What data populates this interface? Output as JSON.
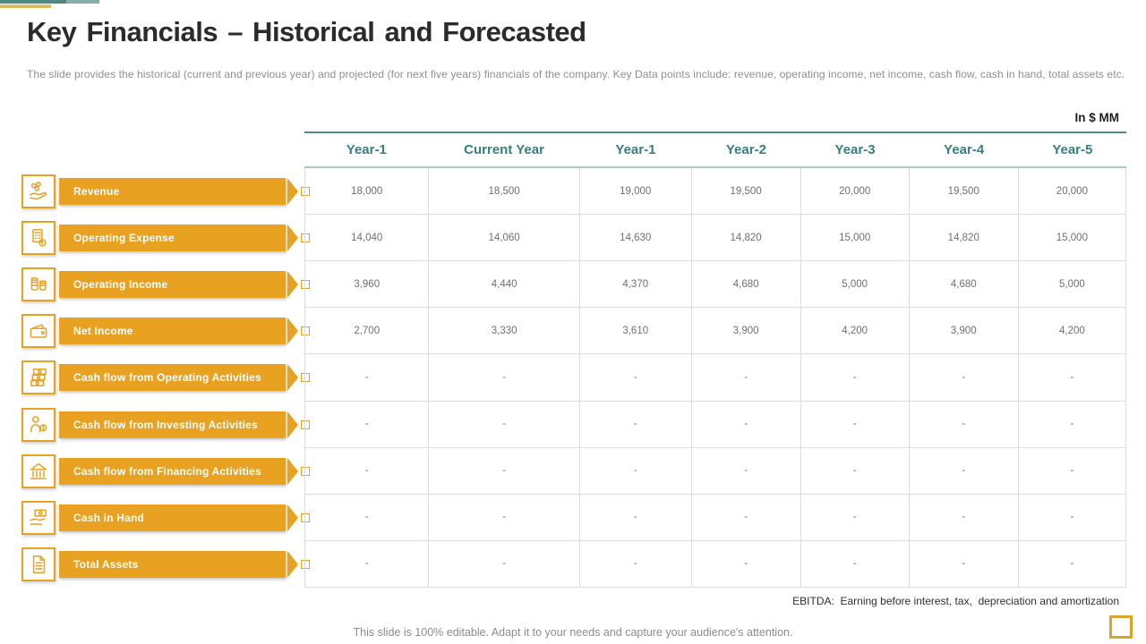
{
  "slide": {
    "title": "Key Financials – Historical and Forecasted",
    "subtitle": "The slide provides the historical (current and previous year) and projected (for next five years) financials of the company. Key Data points include: revenue, operating income, net income, cash flow, cash in hand, total assets etc.",
    "unit_label": "In $ MM",
    "ebitda_note": "EBITDA:  Earning before interest, tax,  depreciation and amortization",
    "footer_note": "This slide is 100% editable. Adapt it to your needs and capture your audience's attention."
  },
  "colors": {
    "accent_orange": "#e8a120",
    "teal_dark": "#4e8c82",
    "teal_light": "#87ada5",
    "gold": "#d9be62",
    "header_text_teal": "#35807c",
    "grid_line": "#dcdcdc",
    "corner_square_gold": "#d8a52b"
  },
  "table": {
    "columns": [
      "Year-1",
      "Current Year",
      "Year-1",
      "Year-2",
      "Year-3",
      "Year-4",
      "Year-5"
    ],
    "rows": [
      {
        "label": "Revenue",
        "icon": "hand-coins-icon",
        "values": [
          "18,000",
          "18,500",
          "19,000",
          "19,500",
          "20,000",
          "19,500",
          "20,000"
        ]
      },
      {
        "label": "Operating Expense",
        "icon": "expense-calculator-icon",
        "values": [
          "14,040",
          "14,060",
          "14,630",
          "14,820",
          "15,000",
          "14,820",
          "15,000"
        ]
      },
      {
        "label": "Operating Income",
        "icon": "coin-stacks-icon",
        "values": [
          "3,960",
          "4,440",
          "4,370",
          "4,680",
          "5,000",
          "4,680",
          "5,000"
        ]
      },
      {
        "label": "Net Income",
        "icon": "wallet-icon",
        "values": [
          "2,700",
          "3,330",
          "3,610",
          "3,900",
          "4,200",
          "3,900",
          "4,200"
        ]
      },
      {
        "label": "Cash flow from Operating Activities",
        "icon": "banknotes-icon",
        "values": [
          "-",
          "-",
          "-",
          "-",
          "-",
          "-",
          "-"
        ]
      },
      {
        "label": "Cash flow from Investing Activities",
        "icon": "investor-icon",
        "values": [
          "-",
          "-",
          "-",
          "-",
          "-",
          "-",
          "-"
        ]
      },
      {
        "label": "Cash flow from Financing Activities",
        "icon": "bank-building-icon",
        "values": [
          "-",
          "-",
          "-",
          "-",
          "-",
          "-",
          "-"
        ]
      },
      {
        "label": "Cash in Hand",
        "icon": "cash-in-hand-icon",
        "values": [
          "-",
          "-",
          "-",
          "-",
          "-",
          "-",
          "-"
        ]
      },
      {
        "label": "Total Assets",
        "icon": "document-icon",
        "values": [
          "-",
          "-",
          "-",
          "-",
          "-",
          "-",
          "-"
        ]
      }
    ]
  }
}
